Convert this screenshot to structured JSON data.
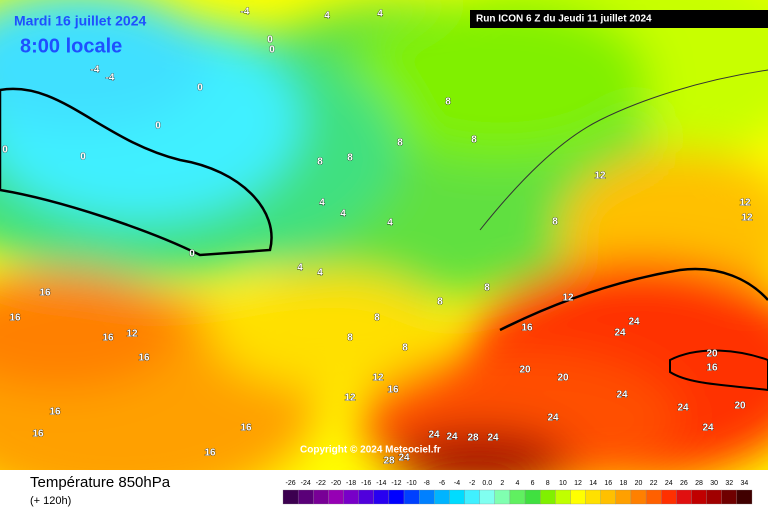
{
  "header": {
    "date": "Mardi 16 juillet 2024",
    "time": "8:00 locale",
    "run": "Run ICON 6 Z du Jeudi 11 juillet 2024",
    "copyright": "Copyright © 2024 Meteociel.fr"
  },
  "legend": {
    "title": "Température 850hPa",
    "lead": "(+ 120h)",
    "ticks": [
      -26,
      -24,
      -22,
      -20,
      -18,
      -16,
      -14,
      -12,
      -10,
      -8,
      -6,
      -4,
      -2,
      {
        "value": 0,
        "label": "0.0"
      },
      2,
      4,
      6,
      8,
      10,
      12,
      14,
      16,
      18,
      20,
      22,
      24,
      26,
      28,
      30,
      32,
      34
    ],
    "colors": [
      "#3c0050",
      "#5a0078",
      "#780096",
      "#9600b4",
      "#7800c8",
      "#5000dc",
      "#2800f0",
      "#0000ff",
      "#0040ff",
      "#0080ff",
      "#00b4ff",
      "#00dcff",
      "#40f0ff",
      "#80fff0",
      "#80ffb0",
      "#60f060",
      "#40e040",
      "#80f000",
      "#c0ff00",
      "#ffff00",
      "#ffe000",
      "#ffc000",
      "#ffa000",
      "#ff8000",
      "#ff6000",
      "#ff3000",
      "#e01010",
      "#c00000",
      "#a00000",
      "#700000",
      "#400000"
    ]
  },
  "map_labels": [
    -4,
    4,
    4,
    0,
    0,
    -4,
    -4,
    0,
    0,
    0,
    0,
    0,
    8,
    8,
    8,
    8,
    8,
    4,
    4,
    4,
    4,
    4,
    8,
    8,
    8,
    8,
    8,
    12,
    12,
    12,
    12,
    12,
    16,
    16,
    16,
    16,
    16,
    16,
    16,
    16,
    16,
    16,
    16,
    20,
    20,
    20,
    20,
    24,
    24,
    24,
    24,
    24,
    24,
    24,
    24,
    24,
    28,
    28,
    24,
    12,
    12,
    8
  ]
}
